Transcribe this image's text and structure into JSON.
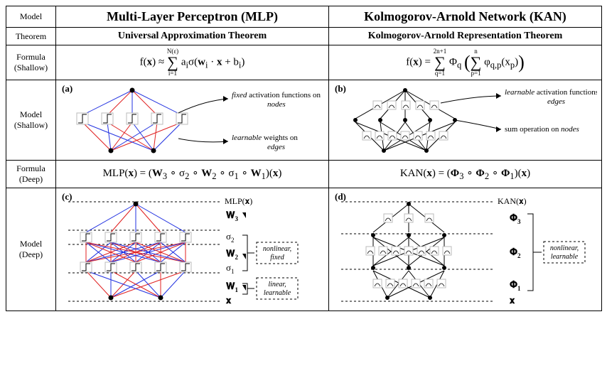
{
  "rows": {
    "r1": "Model",
    "r2": "Theorem",
    "r3": "Formula (Shallow)",
    "r4": "Model (Shallow)",
    "r5": "Formula (Deep)",
    "r6": "Model (Deep)"
  },
  "mlp": {
    "title": "Multi-Layer Perceptron (MLP)",
    "theorem": "Universal Approximation Theorem",
    "formula_shallow_html": "f(<b>x</b>) ≈ <span style='display:inline-block;vertical-align:middle;text-align:center;line-height:1'><span style='font-size:9px;display:block'>N(ε)</span><span style='font-size:22px;display:block'>∑</span><span style='font-size:9px;display:block'>i=1</span></span> a<sub>i</sub>σ(<b>w</b><sub>i</sub> · <b>x</b> + b<sub>i</sub>)",
    "formula_deep_html": "MLP(<b>x</b>) = (<b>W</b><sub>3</sub> ∘ σ<sub>2</sub> ∘ <b>W</b><sub>2</sub> ∘ σ<sub>1</sub> ∘ <b>W</b><sub>1</sub>)(<b>x</b>)",
    "shallow": {
      "panel": "(a)",
      "annot1_pre": "fixed",
      "annot1_post": " activation functions on ",
      "annot1_em": "nodes",
      "annot2_pre": "learnable",
      "annot2_post": " weights on ",
      "annot2_em": "edges",
      "colors": {
        "red": "#e02020",
        "blue": "#2030e0",
        "node": "#000000"
      },
      "input_nodes": 2,
      "hidden_nodes": 5,
      "output_nodes": 1
    },
    "deep": {
      "panel": "(c)",
      "out_label": "MLP(𝐱)",
      "W3": "𝐖",
      "W3s": "3",
      "s2": "σ",
      "s2s": "2",
      "W2": "𝐖",
      "W2s": "2",
      "s1": "σ",
      "s1s": "1",
      "W1": "𝐖",
      "W1s": "1",
      "x": "𝐱",
      "box1a": "nonlinear,",
      "box1b": "fixed",
      "box2a": "linear,",
      "box2b": "learnable",
      "colors": {
        "red": "#e02020",
        "blue": "#2030e0"
      }
    }
  },
  "kan": {
    "title": "Kolmogorov-Arnold Network (KAN)",
    "theorem": "Kolmogorov-Arnold Representation Theorem",
    "formula_shallow_html": "f(<b>x</b>) = <span style='display:inline-block;vertical-align:middle;text-align:center;line-height:1'><span style='font-size:9px;display:block'>2n+1</span><span style='font-size:22px;display:block'>∑</span><span style='font-size:9px;display:block'>q=1</span></span> Φ<sub>q</sub> <span style='font-size:26px;vertical-align:middle'>(</span><span style='display:inline-block;vertical-align:middle;text-align:center;line-height:1'><span style='font-size:9px;display:block'>n</span><span style='font-size:22px;display:block'>∑</span><span style='font-size:9px;display:block'>p=1</span></span> φ<sub>q,p</sub>(x<sub>p</sub>)<span style='font-size:26px;vertical-align:middle'>)</span>",
    "formula_deep_html": "KAN(<b>x</b>) = (<b>Φ</b><sub>3</sub> ∘ <b>Φ</b><sub>2</sub> ∘ <b>Φ</b><sub>1</sub>)(<b>x</b>)",
    "shallow": {
      "panel": "(b)",
      "annot1_pre": "learnable",
      "annot1_post": " activation functions on ",
      "annot1_em": "edges",
      "annot2": "sum operation on ",
      "annot2_em": "nodes",
      "input_nodes": 2,
      "hidden_nodes": 5,
      "output_nodes": 1
    },
    "deep": {
      "panel": "(d)",
      "out_label": "KAN(𝐱)",
      "P3": "𝚽",
      "P3s": "3",
      "P2": "𝚽",
      "P2s": "2",
      "P1": "𝚽",
      "P1s": "1",
      "x": "𝐱",
      "box_a": "nonlinear,",
      "box_b": "learnable"
    }
  },
  "style": {
    "bg": "#ffffff",
    "border": "#000000",
    "dash": "3,3",
    "actbox_fill": "#ffffff",
    "actbox_stroke": "#bbbbbb"
  }
}
